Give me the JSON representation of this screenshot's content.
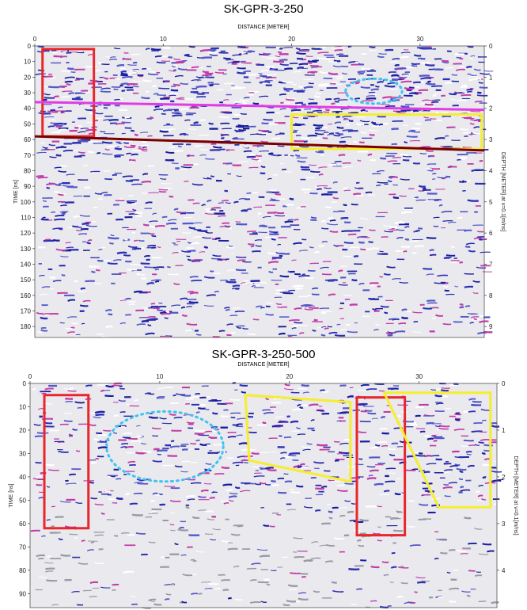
{
  "chart_data": [
    {
      "type": "heatmap",
      "title": "SK-GPR-3-250",
      "xlabel": "DISTANCE [METER]",
      "ylabel": "TIME [ns]",
      "y2label": "DEPTH [METER] at v=0.1[m/ns]",
      "xlim": [
        0,
        35
      ],
      "ylim": [
        0,
        187
      ],
      "y2lim": [
        0,
        9.35
      ],
      "xticks": [
        0,
        10,
        20,
        30
      ],
      "yticks": [
        0,
        10,
        20,
        30,
        40,
        50,
        60,
        70,
        80,
        90,
        100,
        110,
        120,
        130,
        140,
        150,
        160,
        170,
        180
      ],
      "y2ticks": [
        0,
        1,
        2,
        3,
        4,
        5,
        6,
        7,
        8,
        9
      ],
      "annotations": [
        {
          "shape": "rect",
          "color": "#e8262b",
          "x": [
            0.6,
            4.6
          ],
          "y": [
            2,
            58
          ]
        },
        {
          "shape": "rect",
          "color": "#f5ee2e",
          "x": [
            20.0,
            34.8
          ],
          "y": [
            44,
            66
          ]
        },
        {
          "shape": "ellipse",
          "color": "#3fc4ef",
          "cx": 26.4,
          "cy": 29,
          "rx": 2.2,
          "ry": 8
        },
        {
          "shape": "line",
          "color": "#e23be6",
          "x": [
            0,
            35
          ],
          "y": [
            36,
            41
          ]
        },
        {
          "shape": "line",
          "color": "#7a0000",
          "x": [
            0,
            35
          ],
          "y": [
            58,
            67
          ]
        }
      ]
    },
    {
      "type": "heatmap",
      "title": "SK-GPR-3-250-500",
      "xlabel": "DISTANCE [METER]",
      "ylabel": "TIME [ns]",
      "y2label": "DEPTH [METER] at v=0.1[m/ns]",
      "xlim": [
        0,
        36
      ],
      "ylim": [
        0,
        96
      ],
      "y2lim": [
        0,
        4.8
      ],
      "xticks": [
        0,
        10,
        20,
        30
      ],
      "yticks": [
        0,
        10,
        20,
        30,
        40,
        50,
        60,
        70,
        80,
        90
      ],
      "y2ticks": [
        0,
        1,
        2,
        3,
        4
      ],
      "annotations": [
        {
          "shape": "rect",
          "color": "#e8262b",
          "x": [
            1.1,
            4.5
          ],
          "y": [
            5,
            62
          ]
        },
        {
          "shape": "ellipse",
          "color": "#3fc4ef",
          "cx": 10.4,
          "cy": 27,
          "rx": 4.5,
          "ry": 15
        },
        {
          "shape": "quad",
          "color": "#f5ee2e",
          "x": [
            16.6,
            24.7,
            24.7,
            16.9
          ],
          "y": [
            5,
            8,
            42,
            33
          ]
        },
        {
          "shape": "rect",
          "color": "#e8262b",
          "x": [
            25.2,
            28.9
          ],
          "y": [
            6,
            65
          ]
        },
        {
          "shape": "quad",
          "color": "#f5ee2e",
          "x": [
            27.3,
            35.5,
            35.5,
            31.5
          ],
          "y": [
            4,
            4,
            53,
            53
          ]
        }
      ]
    }
  ]
}
